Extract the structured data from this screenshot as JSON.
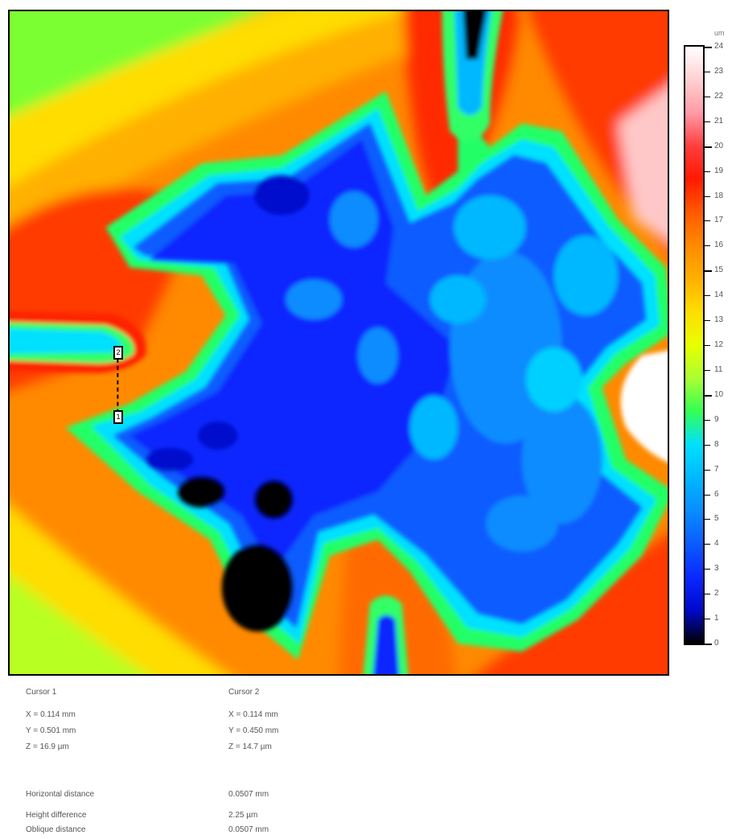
{
  "scale": {
    "unit": "um",
    "labels": [
      "24",
      "23",
      "22",
      "21",
      "20",
      "19",
      "18",
      "17",
      "16",
      "15",
      "14",
      "13",
      "12",
      "11",
      "10",
      "9",
      "8",
      "7",
      "6",
      "5",
      "4",
      "3",
      "2",
      "1",
      "0"
    ],
    "colors": [
      "#ffffff",
      "#ffd0d0",
      "#ff9aa6",
      "#ff3d3d",
      "#ff1a00",
      "#ff5a00",
      "#ff8a00",
      "#ffb000",
      "#ffdd00",
      "#e8ff00",
      "#aaff33",
      "#33ff55",
      "#00e0ff",
      "#00b8ff",
      "#0a8cff",
      "#0a5cff",
      "#0a28ff",
      "#0008cc",
      "#000000"
    ]
  },
  "cursor1": {
    "title": "Cursor 1",
    "x": "X = 0.114 mm",
    "y": "Y = 0.501 mm",
    "z": "Z = 16.9 µm"
  },
  "cursor2": {
    "title": "Cursor 2",
    "x": "X = 0.114 mm",
    "y": "Y = 0.450 mm",
    "z": "Z = 14.7 µm"
  },
  "measurements": {
    "horizontal_label": "Horizontal distance",
    "horizontal_value": "0.0507 mm",
    "height_label": "Height difference",
    "height_value": "2.25 µm",
    "oblique_label": "Oblique distance",
    "oblique_value": "0.0507 mm"
  },
  "markers": {
    "top": "2",
    "bottom": "1"
  }
}
